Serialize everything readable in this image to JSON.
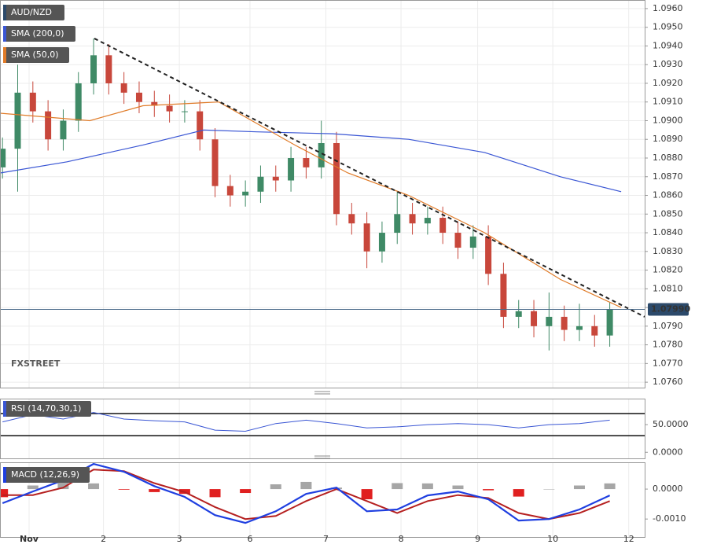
{
  "chart_data": [
    {
      "type": "candlestick",
      "title": "AUD/NZD",
      "watermark": "FXSTREET",
      "up_color": "#3f8a66",
      "down_color": "#c8473b",
      "x": [
        -0.35,
        -0.15,
        0.05,
        0.25,
        0.45,
        0.65,
        0.85,
        1.05,
        1.25,
        1.45,
        1.65,
        1.85,
        2.05,
        2.25,
        2.45,
        2.65,
        2.85,
        3.05,
        3.25,
        3.45,
        3.65,
        3.85,
        4.05,
        4.25,
        4.45,
        4.65,
        4.85,
        5.05,
        5.25,
        5.45,
        5.65,
        5.85,
        6.05,
        6.25,
        6.45,
        6.65,
        6.85,
        7.05,
        7.25,
        7.45,
        7.65
      ],
      "open": [
        1.0875,
        1.0885,
        1.0915,
        1.0905,
        1.089,
        1.09,
        1.092,
        1.0935,
        1.092,
        1.0915,
        1.091,
        1.0908,
        1.0905,
        1.0905,
        1.089,
        1.0865,
        1.086,
        1.0862,
        1.087,
        1.0868,
        1.088,
        1.0875,
        1.0888,
        1.085,
        1.0845,
        1.083,
        1.084,
        1.085,
        1.0845,
        1.0848,
        1.084,
        1.0832,
        1.0838,
        1.0818,
        1.0795,
        1.0798,
        1.079,
        1.0795,
        1.0788,
        1.079,
        1.0785
      ],
      "high": [
        1.0891,
        1.093,
        1.0921,
        1.0911,
        1.0906,
        1.0926,
        1.0944,
        1.0941,
        1.0926,
        1.0921,
        1.0916,
        1.0914,
        1.0911,
        1.0911,
        1.0896,
        1.0871,
        1.0868,
        1.0876,
        1.0876,
        1.0886,
        1.0886,
        1.09,
        1.0894,
        1.0856,
        1.0851,
        1.0846,
        1.0862,
        1.0856,
        1.0854,
        1.0854,
        1.0846,
        1.0844,
        1.0844,
        1.0824,
        1.0804,
        1.0804,
        1.0808,
        1.0801,
        1.0802,
        1.0796,
        1.0803
      ],
      "low": [
        1.0869,
        1.0862,
        1.0899,
        1.0884,
        1.0884,
        1.0894,
        1.0914,
        1.0914,
        1.0909,
        1.0904,
        1.0902,
        1.0899,
        1.0899,
        1.0884,
        1.0859,
        1.0854,
        1.0854,
        1.0856,
        1.0862,
        1.0862,
        1.0869,
        1.0869,
        1.0844,
        1.0839,
        1.0821,
        1.0824,
        1.0834,
        1.0839,
        1.0839,
        1.0834,
        1.0826,
        1.0826,
        1.0812,
        1.0789,
        1.0789,
        1.0784,
        1.0777,
        1.0782,
        1.0782,
        1.0779,
        1.0779
      ],
      "close": [
        1.0885,
        1.0915,
        1.0905,
        1.089,
        1.09,
        1.092,
        1.0935,
        1.092,
        1.0915,
        1.091,
        1.0908,
        1.0905,
        1.0905,
        1.089,
        1.0865,
        1.086,
        1.0862,
        1.087,
        1.0868,
        1.088,
        1.0875,
        1.0888,
        1.085,
        1.0845,
        1.083,
        1.084,
        1.085,
        1.0845,
        1.0848,
        1.084,
        1.0832,
        1.0838,
        1.0818,
        1.0795,
        1.0798,
        1.079,
        1.0795,
        1.0788,
        1.079,
        1.0785,
        1.0799
      ],
      "series": [
        {
          "name": "SMA (200,0)",
          "color": "#3a56d4",
          "x": [
            -0.38,
            0.5,
            1.5,
            2.3,
            3,
            4,
            5,
            6,
            7,
            7.8
          ],
          "values": [
            1.0872,
            1.0878,
            1.0887,
            1.0895,
            1.0894,
            1.0893,
            1.089,
            1.0883,
            1.087,
            1.0862
          ]
        },
        {
          "name": "SMA (50,0)",
          "color": "#e07b28",
          "x": [
            -0.38,
            0.8,
            1.5,
            2.5,
            3.5,
            4.2,
            5,
            6,
            7,
            7.8
          ],
          "values": [
            1.0904,
            1.09,
            1.0908,
            1.091,
            1.0887,
            1.0872,
            1.086,
            1.084,
            1.0815,
            1.08
          ]
        }
      ],
      "trend_line": {
        "x": [
          0.86,
          8.11
        ],
        "values": [
          1.0944,
          1.0795
        ]
      },
      "last_price": {
        "value": 1.0799,
        "label": "1.07990"
      },
      "xlim": [
        -0.383,
        8.11
      ],
      "xticks": [
        {
          "value": 0,
          "label": "Nov"
        },
        {
          "value": 0.98,
          "label": "2"
        },
        {
          "value": 1.98,
          "label": "3"
        },
        {
          "value": 2.91,
          "label": "6"
        },
        {
          "value": 3.91,
          "label": "7"
        },
        {
          "value": 4.9,
          "label": "8"
        },
        {
          "value": 5.91,
          "label": "9"
        },
        {
          "value": 6.9,
          "label": "10"
        },
        {
          "value": 7.9,
          "label": "12"
        }
      ],
      "ylim": [
        1.07571,
        1.09646
      ],
      "yticks": [
        {
          "value": 1.096,
          "label": "1.0960"
        },
        {
          "value": 1.095,
          "label": "1.0950"
        },
        {
          "value": 1.094,
          "label": "1.0940"
        },
        {
          "value": 1.093,
          "label": "1.0930"
        },
        {
          "value": 1.092,
          "label": "1.0920"
        },
        {
          "value": 1.091,
          "label": "1.0910"
        },
        {
          "value": 1.09,
          "label": "1.0900"
        },
        {
          "value": 1.089,
          "label": "1.0890"
        },
        {
          "value": 1.088,
          "label": "1.0880"
        },
        {
          "value": 1.087,
          "label": "1.0870"
        },
        {
          "value": 1.086,
          "label": "1.0860"
        },
        {
          "value": 1.085,
          "label": "1.0850"
        },
        {
          "value": 1.084,
          "label": "1.0840"
        },
        {
          "value": 1.083,
          "label": "1.0830"
        },
        {
          "value": 1.082,
          "label": "1.0820"
        },
        {
          "value": 1.081,
          "label": "1.0810"
        },
        {
          "value": 1.08,
          "label": "1.0800"
        },
        {
          "value": 1.079,
          "label": "1.0790"
        },
        {
          "value": 1.078,
          "label": "1.0780"
        },
        {
          "value": 1.077,
          "label": "1.0770"
        },
        {
          "value": 1.076,
          "label": "1.0760"
        }
      ],
      "grid": true
    },
    {
      "type": "line",
      "title": "RSI (14,70,30,1)",
      "color": "#3a56d4",
      "x": [
        -0.35,
        0.05,
        0.45,
        0.85,
        1.25,
        1.65,
        2.05,
        2.45,
        2.85,
        3.25,
        3.65,
        4.05,
        4.45,
        4.85,
        5.25,
        5.65,
        6.05,
        6.45,
        6.85,
        7.25,
        7.65
      ],
      "values": [
        55,
        68,
        60,
        72,
        60,
        57,
        55,
        40,
        38,
        52,
        58,
        52,
        44,
        46,
        50,
        52,
        50,
        44,
        50,
        52,
        58
      ],
      "levels": [
        70,
        30
      ],
      "ylim": [
        -11,
        97
      ],
      "yticks": [
        {
          "value": 50,
          "label": "50.0000"
        },
        {
          "value": 0,
          "label": "0.0000"
        }
      ]
    },
    {
      "type": "macd",
      "title": "MACD (12,26,9)",
      "macd_color": "#1f3fe0",
      "signal_color": "#b52020",
      "hist_up_color": "#a6a6a6",
      "hist_down_color": "#e02020",
      "x": [
        -0.35,
        0.05,
        0.45,
        0.85,
        1.25,
        1.65,
        2.05,
        2.45,
        2.85,
        3.25,
        3.65,
        4.05,
        4.45,
        4.85,
        5.25,
        5.65,
        6.05,
        6.45,
        6.85,
        7.25,
        7.65
      ],
      "macd": [
        -0.00047,
        -8e-05,
        0.0003,
        0.00084,
        0.00058,
        0.0001,
        -0.00026,
        -0.00087,
        -0.00113,
        -0.00074,
        -0.00016,
        5e-05,
        -0.00074,
        -0.00068,
        -0.00021,
        -8e-05,
        -0.00034,
        -0.00105,
        -0.001,
        -0.00068,
        -0.00021
      ],
      "signal": [
        -0.0002,
        -0.0002,
        5e-05,
        0.00065,
        0.0006,
        0.0002,
        -0.0001,
        -0.0006,
        -0.001,
        -0.0009,
        -0.0004,
        0,
        -0.0004,
        -0.0008,
        -0.0004,
        -0.0002,
        -0.0003,
        -0.0008,
        -0.001,
        -0.0008,
        -0.0004
      ],
      "histogram": [
        -0.00027,
        0.00012,
        0.00025,
        0.00019,
        -2e-05,
        -0.0001,
        -0.00016,
        -0.00027,
        -0.00013,
        0.00016,
        0.00024,
        5e-05,
        -0.00034,
        0.0002,
        0.00019,
        0.00012,
        -4e-05,
        -0.00025,
        0,
        0.00012,
        0.00019
      ],
      "ylim": [
        -0.0016,
        0.000895
      ],
      "yticks": [
        {
          "value": 0,
          "label": "0.0000"
        },
        {
          "value": -0.001,
          "label": "-0.0010"
        }
      ]
    }
  ]
}
